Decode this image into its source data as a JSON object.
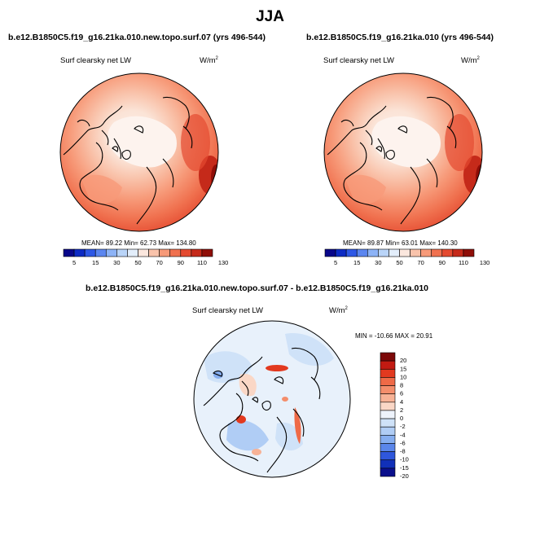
{
  "figure": {
    "title": "JJA"
  },
  "panels": [
    {
      "title": "b.e12.B1850C5.f19_g16.21ka.010.new.topo.surf.07 (yrs 496-544)",
      "variable": "Surf clearsky net LW",
      "units": "W/m",
      "units_exp": "2",
      "stats": "MEAN=  89.22  Min=  62.73  Max= 134.80",
      "colorbar_labels": [
        "5",
        "15",
        "30",
        "50",
        "70",
        "90",
        "110",
        "130"
      ]
    },
    {
      "title": "b.e12.B1850C5.f19_g16.21ka.010 (yrs 496-544)",
      "variable": "Surf clearsky net LW",
      "units": "W/m",
      "units_exp": "2",
      "stats": "MEAN=  89.87  Min=  63.01  Max= 140.30",
      "colorbar_labels": [
        "5",
        "15",
        "30",
        "50",
        "70",
        "90",
        "110",
        "130"
      ]
    },
    {
      "title": "b.e12.B1850C5.f19_g16.21ka.010.new.topo.surf.07 - b.e12.B1850C5.f19_g16.21ka.010",
      "variable": "Surf clearsky net LW",
      "units": "W/m",
      "units_exp": "2",
      "stats": "MIN = -10.66 MAX =  20.91",
      "colorbar_labels": [
        "20",
        "15",
        "10",
        "8",
        "6",
        "4",
        "2",
        "0",
        "-2",
        "-4",
        "-6",
        "-8",
        "-10",
        "-15",
        "-20"
      ]
    }
  ],
  "colors": {
    "abs_scale": [
      "#08068a",
      "#0d2bc4",
      "#2e58e6",
      "#5b86f0",
      "#8db3f7",
      "#b9d4f8",
      "#e3eefb",
      "#fbe7de",
      "#f9c3ab",
      "#f79a79",
      "#f0714f",
      "#e44a30",
      "#c52a1a",
      "#8f0e08"
    ],
    "diff_scale": [
      "#7c0808",
      "#c21a12",
      "#e2391f",
      "#ef6a47",
      "#f48e6c",
      "#f7b296",
      "#fad7c6",
      "#eef3fb",
      "#cfe2f8",
      "#b0cdf5",
      "#86aef0",
      "#5a86ea",
      "#2f57dc",
      "#1130b8",
      "#0a0f8c"
    ]
  }
}
